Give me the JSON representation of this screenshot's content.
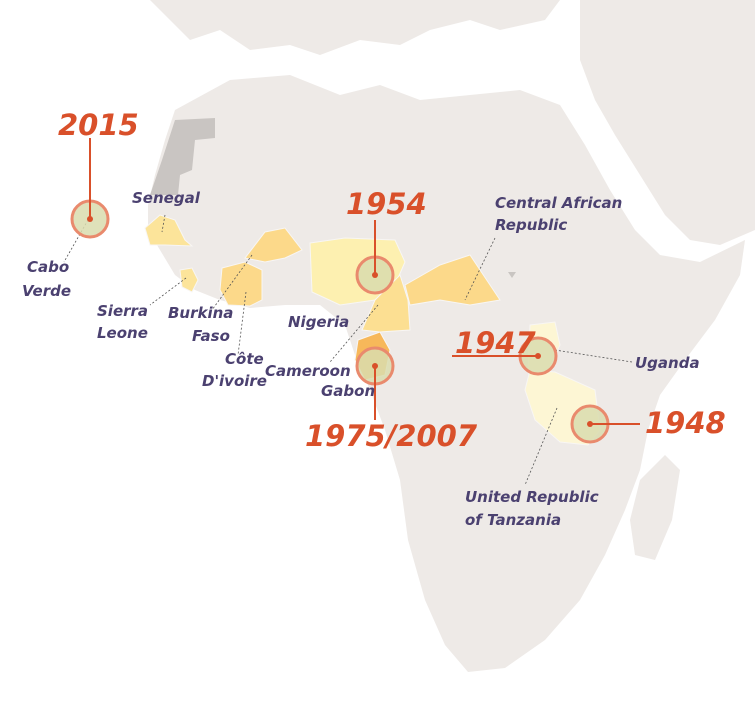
{
  "colors": {
    "land": "#eeeae7",
    "sea": "#ffffff",
    "border": "#f8f6f4",
    "disputed": "#c9c5c2",
    "highlight_light": "#fdf3c4",
    "highlight_mid": "#fce49a",
    "highlight_dark": "#fbd27e",
    "gabon": "#f7b85a",
    "marker_ring": "#e98a6d",
    "marker_fill": "#d9dcae",
    "year_text": "#d9502a",
    "label_text": "#4b4170"
  },
  "countries": [
    {
      "name": "Cabo Verde",
      "label_lines": [
        "Cabo",
        "Verde"
      ]
    },
    {
      "name": "Senegal",
      "label_lines": [
        "Senegal"
      ]
    },
    {
      "name": "Sierra Leone",
      "label_lines": [
        "Sierra",
        "Leone"
      ]
    },
    {
      "name": "Burkina Faso",
      "label_lines": [
        "Burkina",
        "Faso"
      ]
    },
    {
      "name": "Côte D'ivoire",
      "label_lines": [
        "Côte",
        "D'ivoire"
      ]
    },
    {
      "name": "Nigeria",
      "label_lines": [
        "Nigeria"
      ]
    },
    {
      "name": "Cameroon",
      "label_lines": [
        "Cameroon"
      ]
    },
    {
      "name": "Gabon",
      "label_lines": [
        "Gabon"
      ]
    },
    {
      "name": "Central African Republic",
      "label_lines": [
        "Central African",
        "Republic"
      ]
    },
    {
      "name": "Uganda",
      "label_lines": [
        "Uganda"
      ]
    },
    {
      "name": "United Republic of Tanzania",
      "label_lines": [
        "United Republic",
        "of Tanzania"
      ]
    }
  ],
  "markers": [
    {
      "year": "2015",
      "country": "Cabo Verde"
    },
    {
      "year": "1954",
      "country": "Nigeria"
    },
    {
      "year": "1975/2007",
      "country": "Gabon"
    },
    {
      "year": "1947",
      "country": "Uganda"
    },
    {
      "year": "1948",
      "country": "United Republic of Tanzania"
    }
  ]
}
